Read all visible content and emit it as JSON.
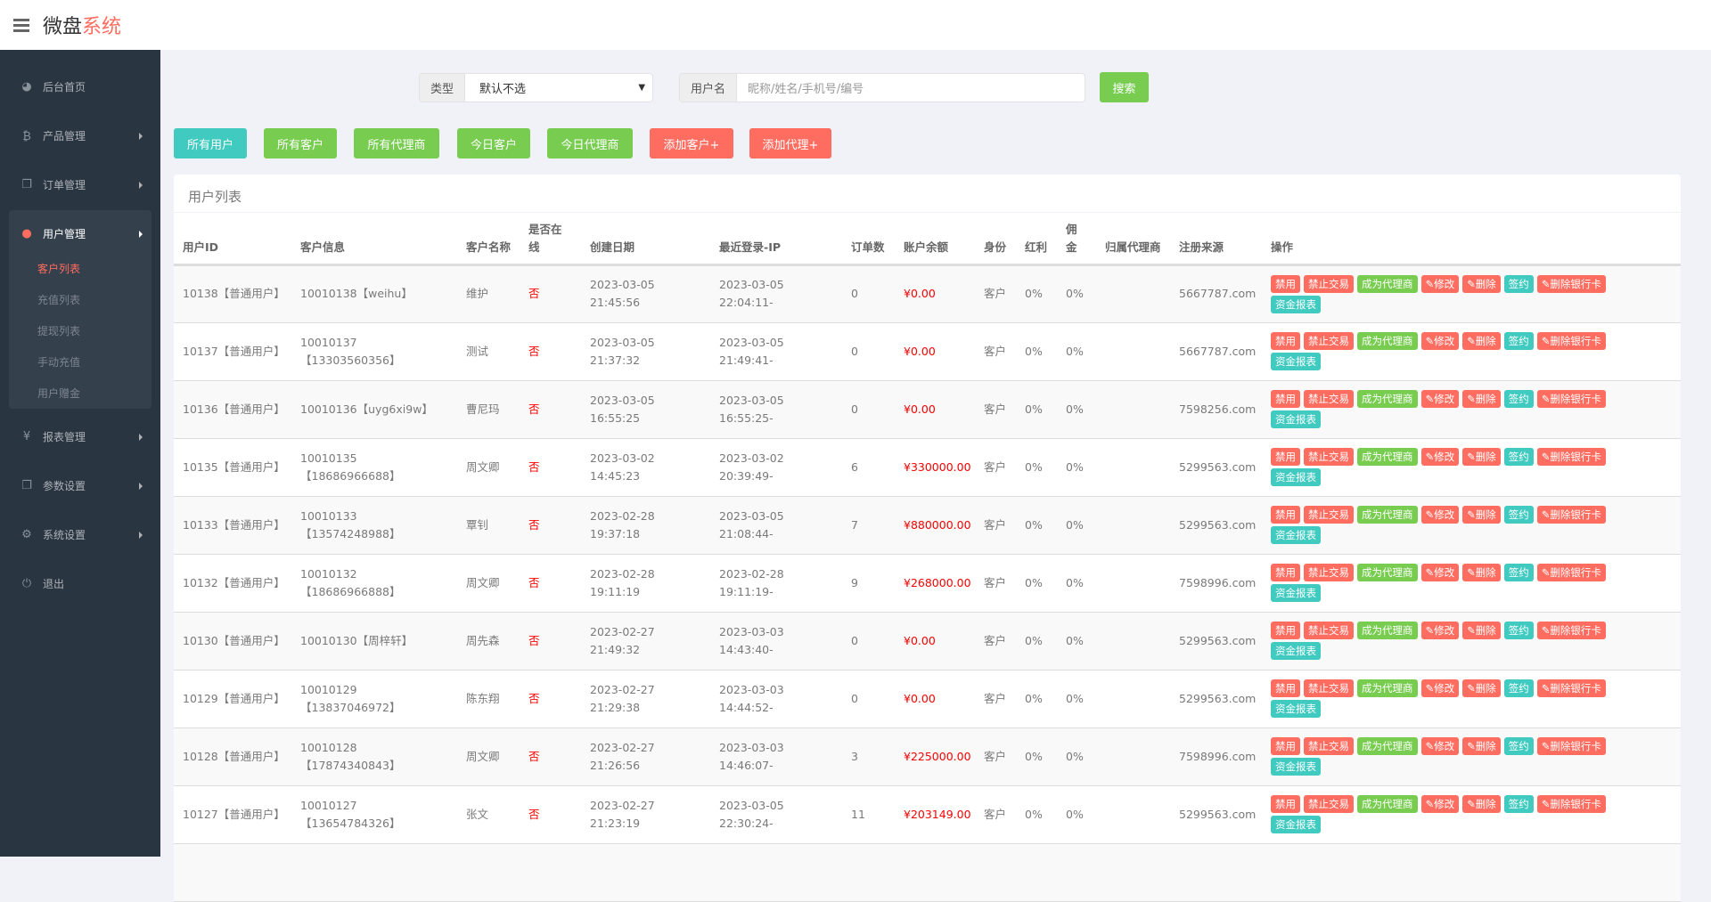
{
  "header": {
    "logo_main": "微盘",
    "logo_accent": "系统"
  },
  "sidebar": {
    "items": [
      {
        "label": "后台首页",
        "icon": "dashboard-icon"
      },
      {
        "label": "产品管理",
        "icon": "bitcoin-icon"
      },
      {
        "label": "订单管理",
        "icon": "copy-icon"
      },
      {
        "label": "用户管理",
        "icon": "user-icon"
      },
      {
        "label": "报表管理",
        "icon": "yen-icon"
      },
      {
        "label": "参数设置",
        "icon": "copy-icon"
      },
      {
        "label": "系统设置",
        "icon": "gears-icon"
      },
      {
        "label": "退出",
        "icon": "power-icon"
      }
    ],
    "sub_items": [
      "客户列表",
      "充值列表",
      "提现列表",
      "手动充值",
      "用户赠金"
    ]
  },
  "filters": {
    "type_label": "类型",
    "type_value": "默认不选",
    "user_label": "用户名",
    "user_placeholder": "昵称/姓名/手机号/编号",
    "search": "搜索"
  },
  "actions": [
    "所有用户",
    "所有客户",
    "所有代理商",
    "今日客户",
    "今日代理商",
    "添加客户+",
    "添加代理+"
  ],
  "colors": {
    "teal": "#41cac0",
    "green": "#78cd51",
    "red": "#ff6c60",
    "sidebar": "#2a3542"
  },
  "panel": {
    "title": "用户列表"
  },
  "table": {
    "headers": [
      "用户ID",
      "客户信息",
      "客户名称",
      "是否在线",
      "创建日期",
      "最近登录-IP",
      "订单数",
      "账户余额",
      "身份",
      "红利",
      "佣金",
      "归属代理商",
      "注册来源",
      "操作"
    ],
    "op_labels": [
      "禁用",
      "禁止交易",
      "成为代理商",
      "修改",
      "删除",
      "签约",
      "删除银行卡",
      "资金报表"
    ],
    "rows": [
      {
        "id": "10138【普通用户】",
        "info": "10010138【weihu】",
        "name": "维护",
        "online": "否",
        "created": "2023-03-05 21:45:56",
        "login": "2023-03-05 22:04:11-",
        "orders": "0",
        "balance": "¥0.00",
        "role": "客户",
        "bonus": "0%",
        "commission": "0%",
        "agent": "",
        "source": "5667787.com"
      },
      {
        "id": "10137【普通用户】",
        "info": "10010137【13303560356】",
        "name": "测试",
        "online": "否",
        "created": "2023-03-05 21:37:32",
        "login": "2023-03-05 21:49:41-",
        "orders": "0",
        "balance": "¥0.00",
        "role": "客户",
        "bonus": "0%",
        "commission": "0%",
        "agent": "",
        "source": "5667787.com"
      },
      {
        "id": "10136【普通用户】",
        "info": "10010136【uyg6xi9w】",
        "name": "曹尼玛",
        "online": "否",
        "created": "2023-03-05 16:55:25",
        "login": "2023-03-05 16:55:25-",
        "orders": "0",
        "balance": "¥0.00",
        "role": "客户",
        "bonus": "0%",
        "commission": "0%",
        "agent": "",
        "source": "7598256.com"
      },
      {
        "id": "10135【普通用户】",
        "info": "10010135【18686966688】",
        "name": "周文卿",
        "online": "否",
        "created": "2023-03-02 14:45:23",
        "login": "2023-03-02 20:39:49-",
        "orders": "6",
        "balance": "¥330000.00",
        "role": "客户",
        "bonus": "0%",
        "commission": "0%",
        "agent": "",
        "source": "5299563.com"
      },
      {
        "id": "10133【普通用户】",
        "info": "10010133【13574248988】",
        "name": "覃钊",
        "online": "否",
        "created": "2023-02-28 19:37:18",
        "login": "2023-03-05 21:08:44-",
        "orders": "7",
        "balance": "¥880000.00",
        "role": "客户",
        "bonus": "0%",
        "commission": "0%",
        "agent": "",
        "source": "5299563.com"
      },
      {
        "id": "10132【普通用户】",
        "info": "10010132【18686966888】",
        "name": "周文卿",
        "online": "否",
        "created": "2023-02-28 19:11:19",
        "login": "2023-02-28 19:11:19-",
        "orders": "9",
        "balance": "¥268000.00",
        "role": "客户",
        "bonus": "0%",
        "commission": "0%",
        "agent": "",
        "source": "7598996.com"
      },
      {
        "id": "10130【普通用户】",
        "info": "10010130【周梓轩】",
        "name": "周先森",
        "online": "否",
        "created": "2023-02-27 21:49:32",
        "login": "2023-03-03 14:43:40-",
        "orders": "0",
        "balance": "¥0.00",
        "role": "客户",
        "bonus": "0%",
        "commission": "0%",
        "agent": "",
        "source": "5299563.com"
      },
      {
        "id": "10129【普通用户】",
        "info": "10010129【13837046972】",
        "name": "陈东翔",
        "online": "否",
        "created": "2023-02-27 21:29:38",
        "login": "2023-03-03 14:44:52-",
        "orders": "0",
        "balance": "¥0.00",
        "role": "客户",
        "bonus": "0%",
        "commission": "0%",
        "agent": "",
        "source": "5299563.com"
      },
      {
        "id": "10128【普通用户】",
        "info": "10010128【17874340843】",
        "name": "周文卿",
        "online": "否",
        "created": "2023-02-27 21:26:56",
        "login": "2023-03-03 14:46:07-",
        "orders": "3",
        "balance": "¥225000.00",
        "role": "客户",
        "bonus": "0%",
        "commission": "0%",
        "agent": "",
        "source": "7598996.com"
      },
      {
        "id": "10127【普通用户】",
        "info": "10010127【13654784326】",
        "name": "张文",
        "online": "否",
        "created": "2023-02-27 21:23:19",
        "login": "2023-03-05 22:30:24-",
        "orders": "11",
        "balance": "¥203149.00",
        "role": "客户",
        "bonus": "0%",
        "commission": "0%",
        "agent": "",
        "source": "5299563.com"
      }
    ]
  }
}
